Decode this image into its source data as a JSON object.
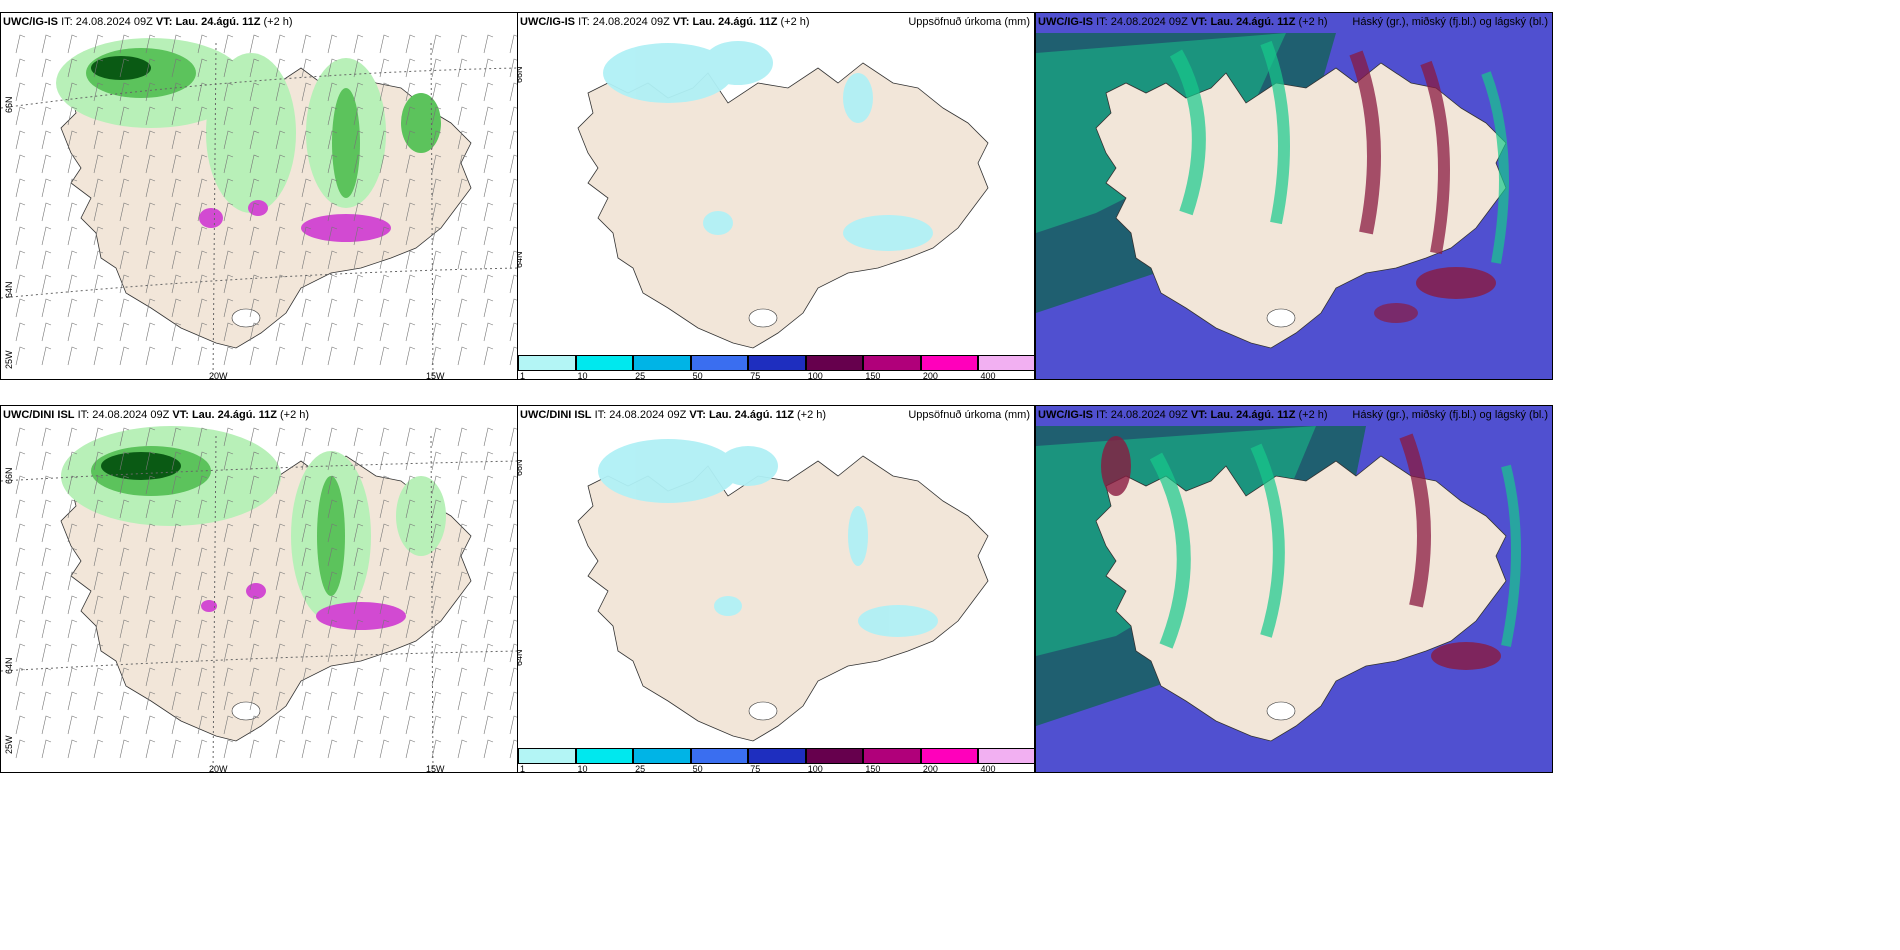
{
  "panels": {
    "top_left": {
      "model": "UWC/IG-IS",
      "it_label": "IT:",
      "it": "24.08.2024 09Z",
      "vt_label": "VT:",
      "vt": "Lau. 24.ágú. 11Z",
      "offset": "(+2 h)",
      "right_title": ""
    },
    "top_mid": {
      "model": "UWC/IG-IS",
      "it_label": "IT:",
      "it": "24.08.2024 09Z",
      "vt_label": "VT:",
      "vt": "Lau. 24.ágú. 11Z",
      "offset": "(+2 h)",
      "right_title": "Uppsöfnuð úrkoma (mm)"
    },
    "top_right": {
      "model": "UWC/IG-IS",
      "it_label": "IT:",
      "it": "24.08.2024 09Z",
      "vt_label": "VT:",
      "vt": "Lau. 24.ágú. 11Z",
      "offset": "(+2 h)",
      "right_title": "Háský (gr.), miðský (fj.bl.) og lágský (bl.)"
    },
    "bot_left": {
      "model": "UWC/DINI ISL",
      "it_label": "IT:",
      "it": "24.08.2024 09Z",
      "vt_label": "VT:",
      "vt": "Lau. 24.ágú. 11Z",
      "offset": "(+2 h)",
      "right_title": ""
    },
    "bot_mid": {
      "model": "UWC/DINI ISL",
      "it_label": "IT:",
      "it": "24.08.2024 09Z",
      "vt_label": "VT:",
      "vt": "Lau. 24.ágú. 11Z",
      "offset": "(+2 h)",
      "right_title": "Uppsöfnuð úrkoma (mm)"
    },
    "bot_right": {
      "model": "UWC/IG-IS",
      "it_label": "IT:",
      "it": "24.08.2024 09Z",
      "vt_label": "VT:",
      "vt": "Lau. 24.ágú. 11Z",
      "offset": "(+2 h)",
      "right_title": "Háský (gr.), miðský (fj.bl.) og lágský (bl.)"
    }
  },
  "axis_labels": {
    "n66": "66N",
    "n64": "64N",
    "w25": "25W",
    "w20": "20W",
    "w15": "15W"
  },
  "legend": {
    "ticks": [
      "1",
      "10",
      "25",
      "50",
      "75",
      "100",
      "150",
      "200",
      "400"
    ],
    "colors": [
      "#b3f5f5",
      "#00e8ee",
      "#00b4e6",
      "#3a6ef0",
      "#1e2ebf",
      "#66004d",
      "#b0007a",
      "#ff00bb",
      "#f2b0f2"
    ]
  },
  "colors": {
    "land": "#f2e6d9",
    "precip_light": "#b8f0b8",
    "precip_mid": "#5cc35c",
    "precip_dark": "#0a5a14",
    "precip_pink": "#d24ad2",
    "accum": "#b0f0f5",
    "cloud_high": "#17c98c",
    "cloud_mid": "#1f5f70",
    "cloud_low": "#5050d0",
    "cloud_red": "#8a1a40"
  }
}
